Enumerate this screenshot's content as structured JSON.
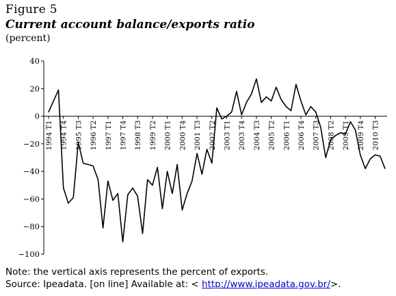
{
  "figure": {
    "label": "Figure 5",
    "title": "Current account balance/exports ratio",
    "unit": "(percent)"
  },
  "note": "Note: the vertical axis represents the percent of exports.",
  "source": {
    "prefix": "Source: Ipeadata. [on line] Available at: < ",
    "link": "http://www.ipeadata.gov.br/",
    "suffix": ">."
  },
  "chart_data": {
    "type": "line",
    "ylim": [
      -100,
      40
    ],
    "y_ticks": [
      40,
      20,
      0,
      -20,
      -40,
      -60,
      -80,
      -100
    ],
    "x_tick_labels": [
      "1994 T1",
      "1994 T4",
      "1995 T3",
      "1996 T2",
      "1997 T1",
      "1997 T4",
      "1998 T3",
      "1999 T2",
      "2000 T1",
      "2000 T4",
      "2001 T3",
      "2002 T2",
      "2003 T1",
      "2003 T4",
      "2004 T3",
      "2005 T2",
      "2006 T1",
      "2006 T4",
      "2007 T3",
      "2008 T2",
      "2009 T1",
      "2009 T4",
      "2010 T3"
    ],
    "line_color": "#000000",
    "series": [
      {
        "values": [
          3,
          11,
          19,
          -52,
          -63,
          -59,
          -19,
          -34,
          -35,
          -36,
          -46,
          -81,
          -47,
          -61,
          -56,
          -91,
          -57,
          -52,
          -58,
          -85,
          -46,
          -50,
          -37,
          -67,
          -40,
          -56,
          -35,
          -68,
          -56,
          -47,
          -27,
          -42,
          -24,
          -34,
          6,
          -2,
          0,
          3,
          18,
          1,
          10,
          16,
          27,
          10,
          14,
          11,
          21,
          12,
          7,
          4,
          23,
          11,
          1,
          7,
          3,
          -8,
          -30,
          -17,
          -14,
          -12,
          -13,
          -4,
          -10,
          -28,
          -38,
          -31,
          -28,
          -29,
          -38
        ]
      }
    ]
  }
}
